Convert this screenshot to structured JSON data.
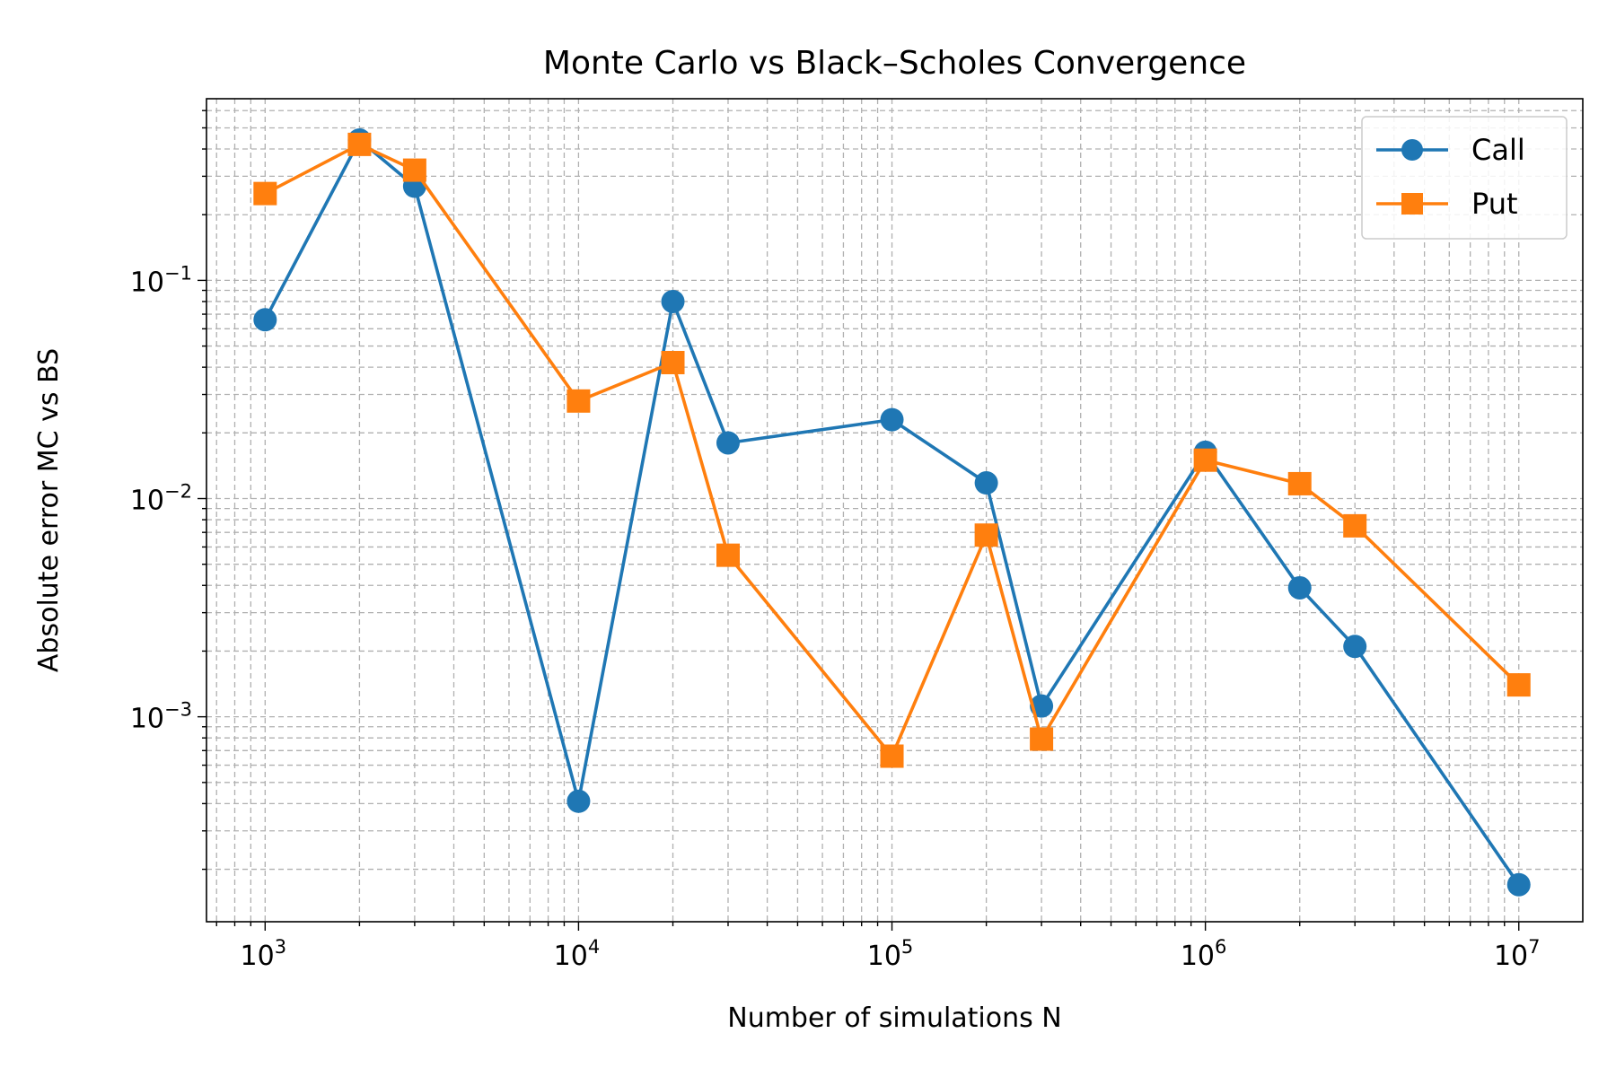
{
  "chart_data": {
    "type": "line",
    "title": "Monte Carlo vs Black–Scholes Convergence",
    "xlabel": "Number of simulations N",
    "ylabel": "Absolute error MC vs BS",
    "xscale": "log",
    "yscale": "log",
    "xlim": [
      650,
      16000000
    ],
    "ylim": [
      0.000115,
      0.68
    ],
    "grid": true,
    "grid_which": "both",
    "legend_position": "top-right",
    "x_ticks": [
      {
        "base": "10",
        "exp": "3"
      },
      {
        "base": "10",
        "exp": "4"
      },
      {
        "base": "10",
        "exp": "5"
      },
      {
        "base": "10",
        "exp": "6"
      },
      {
        "base": "10",
        "exp": "7"
      }
    ],
    "y_ticks": [
      {
        "base": "10",
        "exp": "−1"
      },
      {
        "base": "10",
        "exp": "−2"
      },
      {
        "base": "10",
        "exp": "−3"
      }
    ],
    "x": [
      1000,
      2000,
      3000,
      10000,
      20000,
      30000,
      100000,
      200000,
      300000,
      1000000,
      2000000,
      3000000,
      10000000
    ],
    "series": [
      {
        "name": "Call",
        "color": "#1f77b4",
        "marker": "circle",
        "values": [
          0.066,
          0.44,
          0.27,
          0.00041,
          0.08,
          0.018,
          0.023,
          0.0118,
          0.00112,
          0.0163,
          0.0039,
          0.0021,
          0.00017
        ]
      },
      {
        "name": "Put",
        "color": "#ff7f0e",
        "marker": "square",
        "values": [
          0.25,
          0.42,
          0.32,
          0.028,
          0.042,
          0.0055,
          0.00066,
          0.0068,
          0.00079,
          0.015,
          0.0117,
          0.0075,
          0.0014
        ]
      }
    ]
  }
}
